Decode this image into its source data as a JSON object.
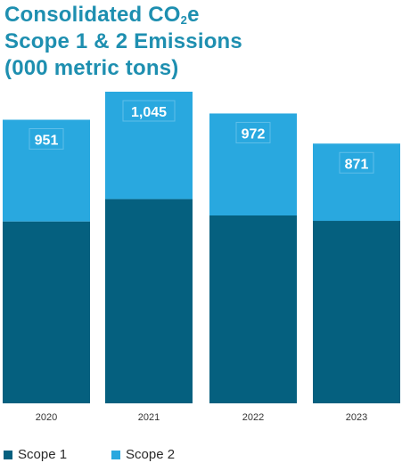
{
  "title": {
    "line1_prefix": "Consolidated CO",
    "line1_sub": "2",
    "line1_suffix": "e",
    "line2": "Scope 1 & 2 Emissions",
    "line3": "(000 metric tons)"
  },
  "colors": {
    "scope1": "#05607f",
    "scope2": "#29a8df",
    "title": "#1e8fb0",
    "label_box": "#5fbee8"
  },
  "chart_data": {
    "type": "bar",
    "stacked": true,
    "categories": [
      "2020",
      "2021",
      "2022",
      "2023"
    ],
    "series": [
      {
        "name": "Scope 1",
        "values": [
          610,
          685,
          630,
          612
        ]
      },
      {
        "name": "Scope 2",
        "values": [
          341,
          360,
          342,
          259
        ]
      }
    ],
    "totals": [
      "951",
      "1,045",
      "972",
      "871"
    ],
    "ylim": [
      0,
      1045
    ],
    "legend": "bottom-left",
    "grid": false
  }
}
